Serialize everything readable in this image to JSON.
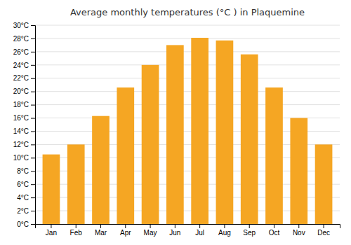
{
  "chart_data": {
    "type": "bar",
    "title": "Average monthly temperatures (°C ) in Plaquemine",
    "categories": [
      "Jan",
      "Feb",
      "Mar",
      "Apr",
      "May",
      "Jun",
      "Jul",
      "Aug",
      "Sep",
      "Oct",
      "Nov",
      "Dec"
    ],
    "values": [
      10.5,
      12.0,
      16.3,
      20.6,
      24.0,
      27.0,
      28.1,
      27.7,
      25.6,
      20.6,
      16.0,
      12.0
    ],
    "color": "#F5A623",
    "ylim": [
      0,
      30
    ],
    "yticks": [
      {
        "value": 0,
        "label": "0°C"
      },
      {
        "value": 2,
        "label": "2°C"
      },
      {
        "value": 4,
        "label": "4°C"
      },
      {
        "value": 6,
        "label": "6°C"
      },
      {
        "value": 8,
        "label": "8°C"
      },
      {
        "value": 10,
        "label": "10°C"
      },
      {
        "value": 12,
        "label": "12°C"
      },
      {
        "value": 14,
        "label": "14°C"
      },
      {
        "value": 16,
        "label": "16°C"
      },
      {
        "value": 18,
        "label": "18°C"
      },
      {
        "value": 20,
        "label": "20°C"
      },
      {
        "value": 22,
        "label": "22°C"
      },
      {
        "value": 24,
        "label": "24°C"
      },
      {
        "value": 26,
        "label": "26°C"
      },
      {
        "value": 28,
        "label": "28°C"
      },
      {
        "value": 30,
        "label": "30°C"
      }
    ],
    "grid": true
  }
}
